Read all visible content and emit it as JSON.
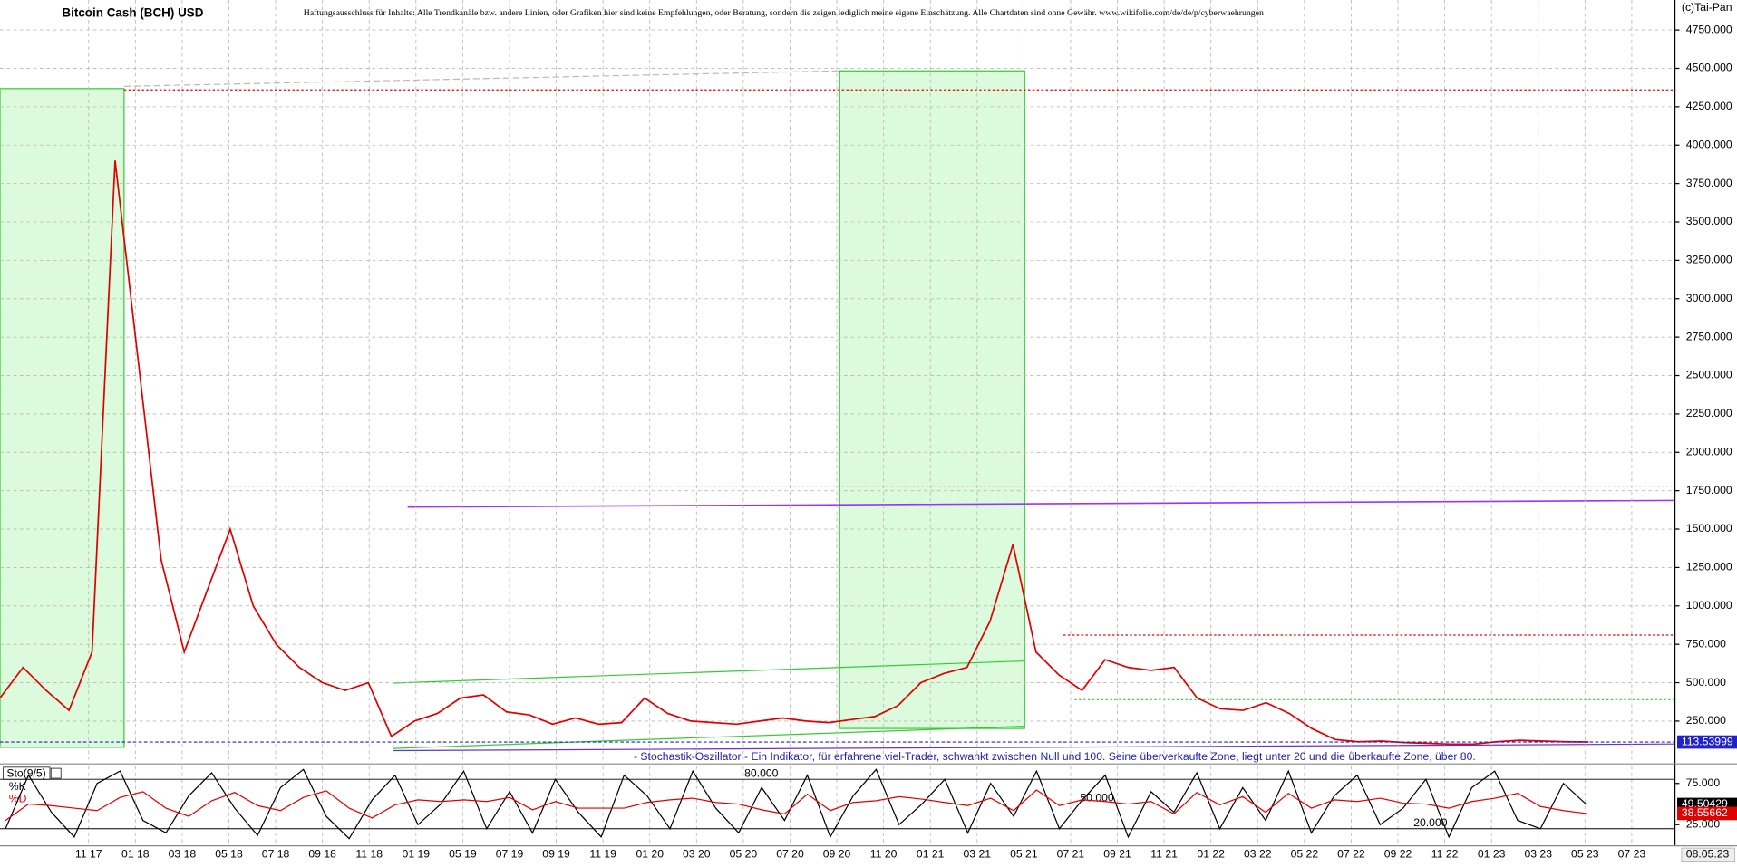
{
  "chart_data": [
    {
      "type": "line",
      "title": "Bitcoin Cash (BCH) USD",
      "subtitle": "Haftungsausschluss für Inhalte: Alle Trendkanäle bzw. andere Linien, oder Grafiken hier sind keine Empfehlungen, oder Beratung, sondern die zeigen lediglich meine eigene Einschätzung. Alle Chartdaten sind ohne Gewähr. www.wikifolio.com/de/de/p/cyberwaehrungen",
      "copyright": "(c)Tai-Pan",
      "date": "08.05.23",
      "xtick_labels": [
        "11 17",
        "01 18",
        "03 18",
        "05 18",
        "07 18",
        "09 18",
        "11 18",
        "01 19",
        "05 19",
        "07 19",
        "09 19",
        "11 19",
        "01 20",
        "03 20",
        "05 20",
        "07 20",
        "09 20",
        "11 20",
        "01 21",
        "03 21",
        "05 21",
        "07 21",
        "09 21",
        "11 21",
        "01 22",
        "03 22",
        "05 22",
        "07 22",
        "09 22",
        "11 22",
        "01 23",
        "03 23",
        "05 23",
        "07 23"
      ],
      "color": "#e00000",
      "values": [
        400,
        600,
        450,
        320,
        700,
        3900,
        2600,
        1300,
        700,
        1100,
        1500,
        1000,
        750,
        600,
        500,
        450,
        500,
        150,
        250,
        300,
        400,
        420,
        310,
        290,
        230,
        270,
        230,
        240,
        400,
        300,
        250,
        240,
        230,
        250,
        270,
        250,
        240,
        260,
        280,
        350,
        500,
        560,
        600,
        900,
        1400,
        700,
        550,
        450,
        650,
        600,
        580,
        600,
        400,
        330,
        320,
        370,
        300,
        200,
        130,
        115,
        120,
        110,
        105,
        100,
        100,
        115,
        125,
        120,
        115,
        113.53999
      ],
      "last_value": 113.53999,
      "levels": [
        4360,
        1780,
        810
      ],
      "ylim": [
        0,
        4945
      ],
      "yticks": [
        {
          "value": 250,
          "label": "250.000"
        },
        {
          "value": 500,
          "label": "500.000"
        },
        {
          "value": 750,
          "label": "750.000"
        },
        {
          "value": 1000,
          "label": "1000.000"
        },
        {
          "value": 1250,
          "label": "1250.000"
        },
        {
          "value": 1500,
          "label": "1500.000"
        },
        {
          "value": 1750,
          "label": "1750.000"
        },
        {
          "value": 2000,
          "label": "2000.000"
        },
        {
          "value": 2250,
          "label": "2250.000"
        },
        {
          "value": 2500,
          "label": "2500.000"
        },
        {
          "value": 2750,
          "label": "2750.000"
        },
        {
          "value": 3000,
          "label": "3000.000"
        },
        {
          "value": 3250,
          "label": "3250.000"
        },
        {
          "value": 3500,
          "label": "3500.000"
        },
        {
          "value": 3750,
          "label": "3750.000"
        },
        {
          "value": 4000,
          "label": "4000.000"
        },
        {
          "value": 4250,
          "label": "4250.000"
        },
        {
          "value": 4500,
          "label": "4500.000"
        },
        {
          "value": 4750,
          "label": "4750.000"
        }
      ],
      "grid": true
    },
    {
      "type": "line",
      "title": "Sto(9/5)",
      "note": "- Stochastik-Oszillator - Ein Indikator, für erfahrene viel-Trader, schwankt zwischen Null und 100. Seine überverkaufte Zone, liegt unter 20 und die überkaufte Zone, über 80.",
      "series": [
        {
          "name": "%K",
          "color": "#000000",
          "values": [
            20,
            85,
            40,
            10,
            75,
            90,
            30,
            15,
            60,
            88,
            45,
            12,
            70,
            92,
            35,
            8,
            55,
            85,
            25,
            50,
            90,
            20,
            65,
            15,
            80,
            40,
            10,
            85,
            60,
            20,
            90,
            45,
            15,
            70,
            30,
            85,
            10,
            60,
            92,
            25,
            50,
            80,
            15,
            75,
            35,
            90,
            20,
            55,
            85,
            10,
            65,
            40,
            88,
            20,
            70,
            30,
            90,
            15,
            60,
            85,
            25,
            45,
            80,
            10,
            70,
            90,
            30,
            20,
            75,
            49.50429
          ]
        },
        {
          "name": "%D",
          "color": "#e00000",
          "values": [
            30,
            50,
            48,
            45,
            42,
            58,
            65,
            45,
            35,
            54,
            64,
            48,
            42,
            58,
            66,
            45,
            33,
            49,
            55,
            53,
            55,
            53,
            58,
            43,
            53,
            45,
            45,
            45,
            52,
            55,
            57,
            52,
            50,
            43,
            38,
            62,
            42,
            52,
            54,
            59,
            56,
            52,
            48,
            57,
            42,
            67,
            48,
            55,
            53,
            50,
            53,
            38,
            64,
            49,
            59,
            40,
            63,
            45,
            55,
            53,
            57,
            51,
            50,
            45,
            53,
            57,
            63,
            47,
            42,
            38.55662
          ]
        }
      ],
      "levels": [
        {
          "value": 80,
          "label": "80.000"
        },
        {
          "value": 50,
          "label": "50.000"
        },
        {
          "value": 20,
          "label": "20.000"
        }
      ],
      "ylim": [
        2,
        96
      ],
      "yticks": [
        {
          "value": 75,
          "label": "75.000"
        },
        {
          "value": 25,
          "label": "25.000"
        }
      ]
    }
  ]
}
